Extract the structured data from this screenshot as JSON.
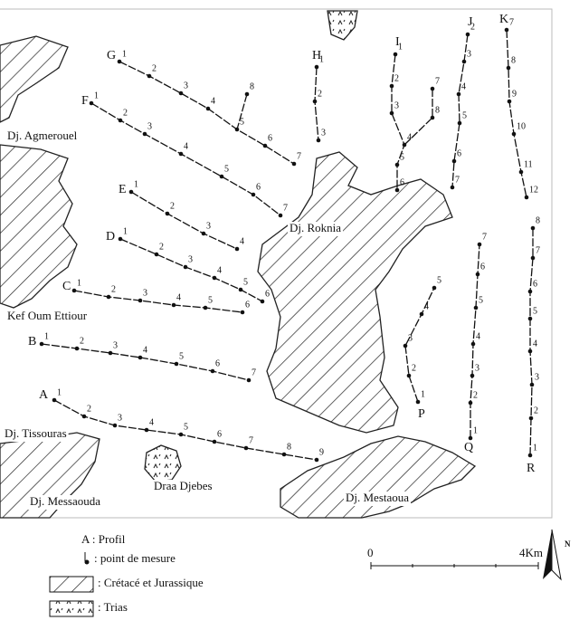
{
  "map": {
    "profiles": [
      {
        "label": "G",
        "points": [
          1,
          2,
          3,
          4,
          5,
          6,
          7,
          8
        ]
      },
      {
        "label": "F",
        "points": [
          1,
          2,
          3,
          4,
          5,
          6,
          7
        ]
      },
      {
        "label": "E",
        "points": [
          1,
          2,
          3,
          4
        ]
      },
      {
        "label": "D",
        "points": [
          1,
          2,
          3,
          4,
          5,
          6
        ]
      },
      {
        "label": "C",
        "points": [
          1,
          2,
          3,
          4,
          5,
          6
        ]
      },
      {
        "label": "B",
        "points": [
          1,
          2,
          3,
          4,
          5,
          6,
          7
        ]
      },
      {
        "label": "A",
        "points": [
          1,
          2,
          3,
          4,
          5,
          6,
          7,
          8,
          9
        ]
      },
      {
        "label": "H",
        "points": [
          1,
          2,
          3
        ]
      },
      {
        "label": "I",
        "points": [
          1,
          2,
          3,
          4,
          5,
          6,
          7,
          8
        ]
      },
      {
        "label": "J",
        "points": [
          2,
          3,
          4,
          5,
          6,
          7
        ]
      },
      {
        "label": "K",
        "points": [
          7,
          8,
          9,
          10,
          11,
          12
        ]
      },
      {
        "label": "Q",
        "points": [
          1,
          2,
          3,
          4,
          5,
          6,
          7
        ]
      },
      {
        "label": "R",
        "points": [
          1,
          2,
          3,
          4,
          5,
          6,
          7,
          8
        ]
      },
      {
        "label": "P",
        "points": [
          1,
          2,
          3,
          4,
          5
        ]
      }
    ],
    "places": [
      "Dj. Agmerouel",
      "Dj. Roknia",
      "Kef Oum Ettiour",
      "Dj. Tissouras",
      "Dj. Messaouda",
      "Draa Djebes",
      "Dj. Mestaoua"
    ],
    "legend": {
      "profile": "A : Profil",
      "point": ": point de mesure",
      "cretaceous": ": Crétacé et Jurassique",
      "trias": ": Trias"
    },
    "scale": {
      "start": 0,
      "end": "4Km"
    },
    "north": "N"
  }
}
